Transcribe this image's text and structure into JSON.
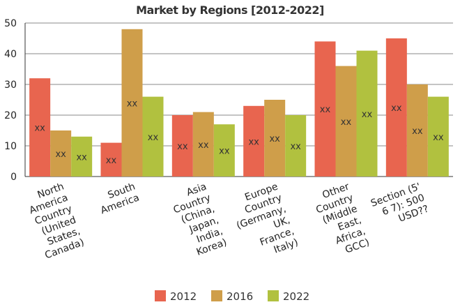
{
  "chart_data": {
    "type": "bar",
    "title": "Market by Regions [2012-2022]",
    "categories": [
      [
        "North",
        "America",
        "Country",
        "(United",
        "States,",
        "Canada)"
      ],
      [
        "South",
        "America"
      ],
      [
        "Asia",
        "Country",
        "(China,",
        "Japan,",
        "India,",
        "Korea)"
      ],
      [
        "Europe",
        "Country",
        "(Germany,",
        "UK,",
        "France,",
        "Italy)"
      ],
      [
        "Other",
        "Country",
        "(Middle",
        "East,",
        "Africa,",
        "GCC)"
      ],
      [
        "Section (5'",
        "6 7): 500",
        "USD??"
      ]
    ],
    "series": [
      {
        "name": "2012",
        "color": "#e8654f",
        "values": [
          32,
          11,
          20,
          23,
          44,
          45
        ]
      },
      {
        "name": "2016",
        "color": "#cf9e4a",
        "values": [
          15,
          48,
          21,
          25,
          36,
          30
        ]
      },
      {
        "name": "2022",
        "color": "#b1c13f",
        "values": [
          13,
          26,
          17,
          20,
          41,
          26
        ]
      }
    ],
    "data_label": "xx",
    "ylim": [
      0,
      50
    ],
    "yticks": [
      0,
      10,
      20,
      30,
      40,
      50
    ],
    "grid": true,
    "legend_position": "bottom"
  }
}
